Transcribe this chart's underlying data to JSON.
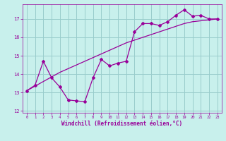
{
  "title": "",
  "xlabel": "Windchill (Refroidissement éolien,°C)",
  "bg_color": "#c8f0ec",
  "grid_color": "#99cccc",
  "line_color": "#990099",
  "x_hours": [
    0,
    1,
    2,
    3,
    4,
    5,
    6,
    7,
    8,
    9,
    10,
    11,
    12,
    13,
    14,
    15,
    16,
    17,
    18,
    19,
    20,
    21,
    22,
    23
  ],
  "y_temp": [
    13.1,
    13.4,
    14.7,
    13.8,
    13.3,
    12.6,
    12.55,
    12.5,
    13.8,
    14.8,
    14.45,
    14.6,
    14.7,
    16.3,
    16.75,
    16.75,
    16.65,
    16.85,
    17.2,
    17.5,
    17.15,
    17.2,
    17.0,
    17.0
  ],
  "y_trend": [
    13.1,
    13.35,
    13.6,
    13.85,
    14.1,
    14.3,
    14.5,
    14.7,
    14.9,
    15.1,
    15.3,
    15.5,
    15.7,
    15.85,
    16.0,
    16.15,
    16.3,
    16.45,
    16.6,
    16.75,
    16.85,
    16.9,
    16.95,
    17.0
  ],
  "ylim": [
    11.9,
    17.8
  ],
  "xlim": [
    -0.5,
    23.5
  ],
  "yticks": [
    12,
    13,
    14,
    15,
    16,
    17
  ],
  "xticks": [
    0,
    1,
    2,
    3,
    4,
    5,
    6,
    7,
    8,
    9,
    10,
    11,
    12,
    13,
    14,
    15,
    16,
    17,
    18,
    19,
    20,
    21,
    22,
    23
  ],
  "xtick_labels": [
    "0",
    "1",
    "2",
    "3",
    "4",
    "5",
    "6",
    "7",
    "8",
    "9",
    "10",
    "11",
    "12",
    "13",
    "14",
    "15",
    "16",
    "17",
    "18",
    "19",
    "20",
    "21",
    "22",
    "23"
  ]
}
